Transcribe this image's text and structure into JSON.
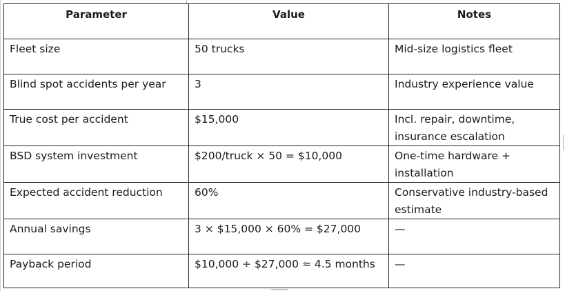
{
  "table": {
    "headers": [
      "Parameter",
      "Value",
      "Notes"
    ],
    "rows": [
      [
        "Fleet size",
        "50 trucks",
        "Mid-size logistics fleet"
      ],
      [
        "Blind spot accidents per year",
        "3",
        "Industry experience value"
      ],
      [
        "True cost per accident",
        "$15,000",
        "Incl. repair, downtime, insurance escalation"
      ],
      [
        "BSD system investment",
        "$200/truck × 50 = $10,000",
        "One-time hardware + installation"
      ],
      [
        "Expected accident reduction",
        "60%",
        "Conservative industry-based estimate"
      ],
      [
        "Annual savings",
        "3 × $15,000 × 60% = $27,000",
        "—"
      ],
      [
        "Payback period",
        "$10,000 ÷ $27,000 ≈ 4.5 months",
        "—"
      ]
    ]
  }
}
